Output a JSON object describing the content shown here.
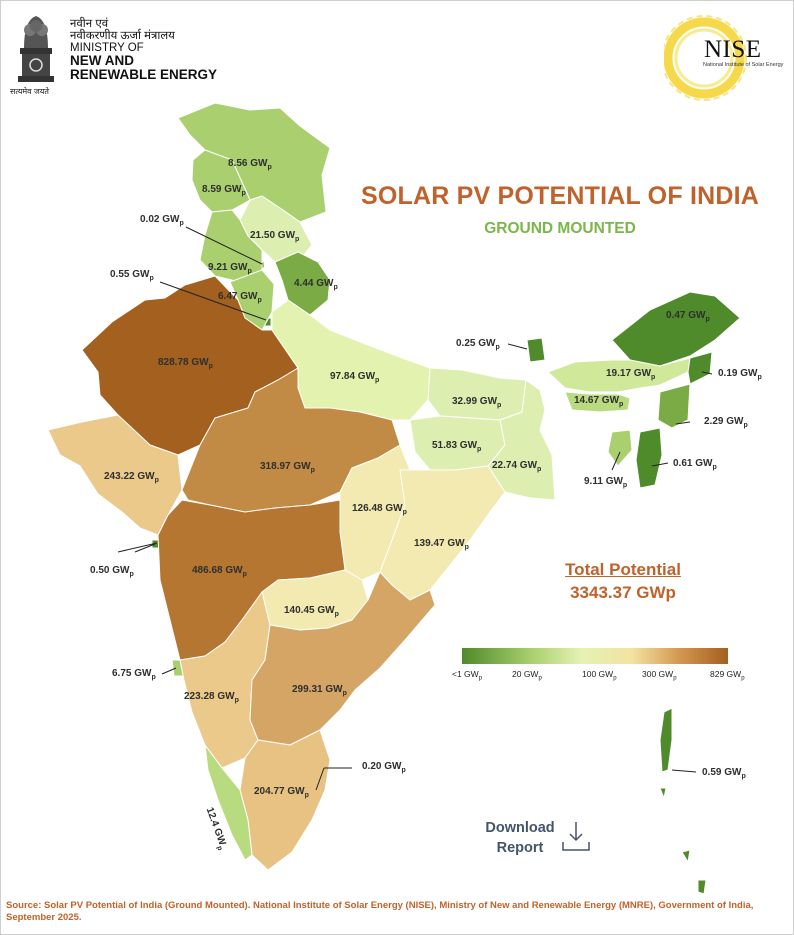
{
  "header": {
    "ministry_hindi_1": "नवीन एवं",
    "ministry_hindi_2": "नवीकरणीय ऊर्जा मंत्रालय",
    "ministry_line1": "MINISTRY OF",
    "ministry_line2": "NEW AND",
    "ministry_line3": "RENEWABLE ENERGY",
    "emblem_motto": "सत्यमेव जयते",
    "nise_logo": "NISE",
    "nise_full": "National Institute of Solar Energy"
  },
  "title": "SOLAR PV POTENTIAL OF INDIA",
  "subtitle": "GROUND MOUNTED",
  "total": {
    "label": "Total Potential",
    "value": "3343.37 GWp"
  },
  "legend": {
    "labels": [
      "<1 GW",
      "20 GW",
      "100 GW",
      "300 GW",
      "829 GW"
    ],
    "colors": [
      "#4f8a2b",
      "#a9cf6e",
      "#e6f2b4",
      "#f2e3a0",
      "#d39650",
      "#a3601f"
    ]
  },
  "download": {
    "line1": "Download",
    "line2": "Report"
  },
  "source": "Source: Solar PV Potential of India (Ground Mounted). National Institute of Solar Energy (NISE), Ministry of New and Renewable Energy (MNRE), Government of India, September 2025.",
  "regions": [
    {
      "value": "8.56 GW",
      "gw": 8.56,
      "color": "#a9cf6e"
    },
    {
      "value": "8.59 GW",
      "gw": 8.59,
      "color": "#a9cf6e"
    },
    {
      "value": "0.02 GW",
      "gw": 0.02,
      "color": "#4f8a2b"
    },
    {
      "value": "21.50 GW",
      "gw": 21.5,
      "color": "#dcefb1"
    },
    {
      "value": "9.21 GW",
      "gw": 9.21,
      "color": "#a9cf6e"
    },
    {
      "value": "0.55 GW",
      "gw": 0.55,
      "color": "#4f8a2b"
    },
    {
      "value": "6.47 GW",
      "gw": 6.47,
      "color": "#a9cf6e"
    },
    {
      "value": "4.44 GW",
      "gw": 4.44,
      "color": "#7aab45"
    },
    {
      "value": "828.78 GW",
      "gw": 828.78,
      "color": "#a3601f"
    },
    {
      "value": "97.84 GW",
      "gw": 97.84,
      "color": "#e3f2ae"
    },
    {
      "value": "32.99 GW",
      "gw": 32.99,
      "color": "#dcefb1"
    },
    {
      "value": "51.83 GW",
      "gw": 51.83,
      "color": "#dcefb1"
    },
    {
      "value": "22.74 GW",
      "gw": 22.74,
      "color": "#dcefb1"
    },
    {
      "value": "0.25 GW",
      "gw": 0.25,
      "color": "#4f8a2b"
    },
    {
      "value": "0.47 GW",
      "gw": 0.47,
      "color": "#4f8a2b"
    },
    {
      "value": "19.17 GW",
      "gw": 19.17,
      "color": "#cfe89a"
    },
    {
      "value": "0.19 GW",
      "gw": 0.19,
      "color": "#4f8a2b"
    },
    {
      "value": "14.67 GW",
      "gw": 14.67,
      "color": "#b9db80"
    },
    {
      "value": "2.29 GW",
      "gw": 2.29,
      "color": "#7aab45"
    },
    {
      "value": "0.61 GW",
      "gw": 0.61,
      "color": "#4f8a2b"
    },
    {
      "value": "9.11 GW",
      "gw": 9.11,
      "color": "#a9cf6e"
    },
    {
      "value": "243.22 GW",
      "gw": 243.22,
      "color": "#ebc98a"
    },
    {
      "value": "318.97 GW",
      "gw": 318.97,
      "color": "#c18a45"
    },
    {
      "value": "126.48 GW",
      "gw": 126.48,
      "color": "#f2eab0"
    },
    {
      "value": "139.47 GW",
      "gw": 139.47,
      "color": "#f2eab0"
    },
    {
      "value": "0.50 GW",
      "gw": 0.5,
      "color": "#4f8a2b"
    },
    {
      "value": "486.68 GW",
      "gw": 486.68,
      "color": "#b47631"
    },
    {
      "value": "140.45 GW",
      "gw": 140.45,
      "color": "#f2eab0"
    },
    {
      "value": "6.75 GW",
      "gw": 6.75,
      "color": "#a9cf6e"
    },
    {
      "value": "223.28 GW",
      "gw": 223.28,
      "color": "#ebc98a"
    },
    {
      "value": "299.31 GW",
      "gw": 299.31,
      "color": "#d5a566"
    },
    {
      "value": "0.20 GW",
      "gw": 0.2,
      "color": "#4f8a2b"
    },
    {
      "value": "204.77 GW",
      "gw": 204.77,
      "color": "#e8c283"
    },
    {
      "value": "12.4 GW",
      "gw": 12.4,
      "color": "#b9db80"
    },
    {
      "value": "0.59 GW",
      "gw": 0.59,
      "color": "#4f8a2b"
    }
  ],
  "unit_subscript": "p"
}
